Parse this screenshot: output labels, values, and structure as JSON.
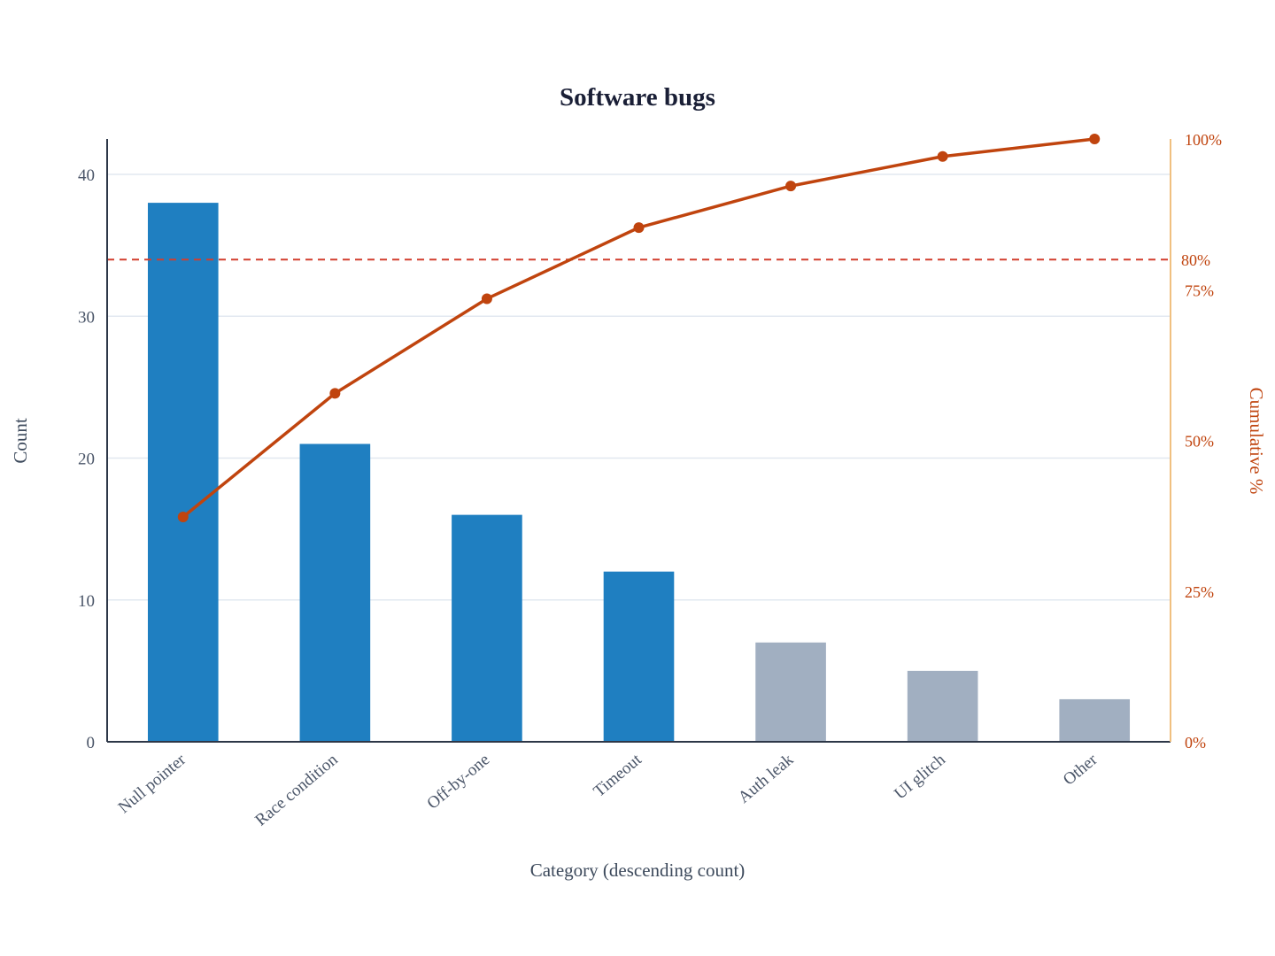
{
  "chart_data": {
    "type": "bar",
    "title": "Software bugs",
    "xlabel": "Category (descending count)",
    "ylabel": "Count",
    "y2label": "Cumulative %",
    "categories": [
      "Null pointer",
      "Race condition",
      "Off-by-one",
      "Timeout",
      "Auth leak",
      "UI glitch",
      "Other"
    ],
    "series": [
      {
        "type": "bar",
        "values": [
          38,
          21,
          16,
          12,
          7,
          5,
          3
        ],
        "highlighted": [
          true,
          true,
          true,
          true,
          false,
          false,
          false
        ]
      },
      {
        "type": "line",
        "axis": "right",
        "values": [
          37.3,
          57.8,
          73.5,
          85.3,
          92.2,
          97.1,
          100
        ]
      }
    ],
    "ylim": [
      0,
      42.5
    ],
    "y_ticks": [
      0,
      10,
      20,
      30,
      40
    ],
    "y2lim": [
      0,
      100
    ],
    "y2_ticks": [
      0,
      25,
      50,
      75,
      100
    ],
    "y2_tick_labels": [
      "0%",
      "25%",
      "50%",
      "75%",
      "100%"
    ],
    "threshold": {
      "value": 80,
      "label": "80%"
    },
    "grid": true,
    "colors": {
      "bar_highlight": "#1f7fc1",
      "bar_muted": "#a1afc1",
      "cumulative_line": "#c0440e",
      "threshold_line": "#d23f2f",
      "right_axis_line": "#f0c080",
      "right_axis_text": "#c0440e",
      "left_axis_line": "#2d3748",
      "grid": "#e2e8f0",
      "title": "#1a1f36"
    }
  }
}
